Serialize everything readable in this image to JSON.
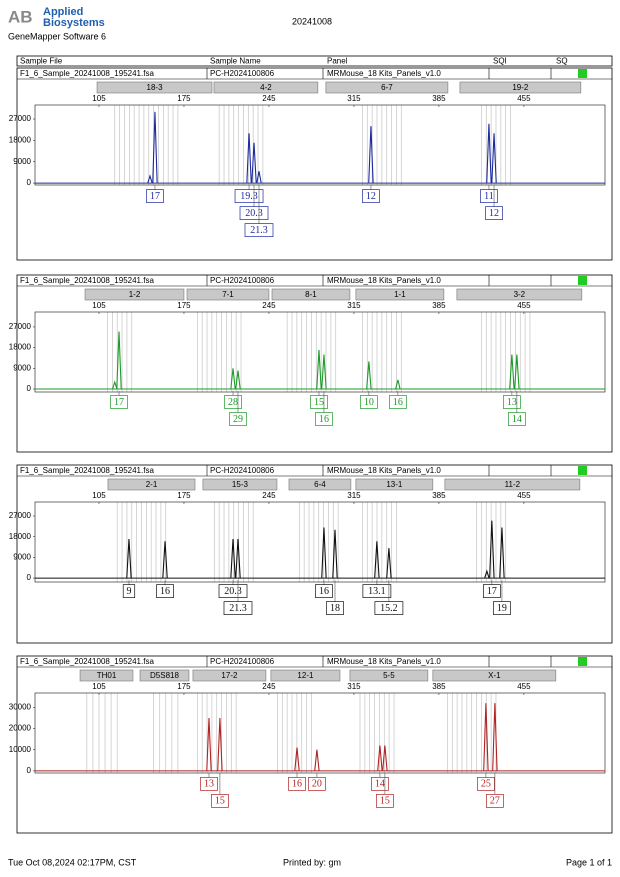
{
  "header": {
    "logo": "AB",
    "brand_line1": "Applied",
    "brand_line2": "Biosystems",
    "software": "GeneMapper Software 6",
    "run": "20241008"
  },
  "columns": [
    "Sample File",
    "Sample Name",
    "Panel",
    "SQI",
    "SQ"
  ],
  "panels": [
    {
      "sample_file": "F1_6_Sample_20241008_195241.fsa",
      "sample_name": "PC-H2024100806",
      "panel": "MRMouse_18 Kits_Panels_v1.0",
      "color": "#1c2a9c",
      "xlim": [
        52.3,
        521.8
      ],
      "xticks": [
        105,
        175,
        245,
        315,
        385,
        455
      ],
      "ylim": [
        -800,
        32900
      ],
      "yticks": [
        0,
        9000,
        18000,
        27000
      ],
      "markers": [
        {
          "label": "18-3",
          "start": 103.4,
          "end": 198.1
        },
        {
          "label": "4-2",
          "start": 199.7,
          "end": 285.3
        },
        {
          "label": "6-7",
          "start": 291.9,
          "end": 392.4
        },
        {
          "label": "19-2",
          "start": 402.3,
          "end": 501.9
        }
      ],
      "bins": [
        118,
        122,
        126,
        130,
        134,
        138,
        142,
        146,
        150,
        154,
        158,
        162,
        166,
        170,
        204,
        208,
        212,
        216,
        220,
        224,
        228,
        232,
        236,
        240,
        322,
        326,
        330,
        334,
        338,
        342,
        346,
        350,
        354,
        420,
        424,
        428,
        432,
        436,
        440,
        444
      ],
      "peaks": [
        {
          "x": 147,
          "height": 3000,
          "allele": null
        },
        {
          "x": 151.1,
          "height": 30000,
          "allele": "17"
        },
        {
          "x": 228.6,
          "height": 21000,
          "allele": "19.3"
        },
        {
          "x": 232.7,
          "height": 17000,
          "allele": "20.3"
        },
        {
          "x": 236.8,
          "height": 5000,
          "allele": "21.3"
        },
        {
          "x": 329,
          "height": 24000,
          "allele": "12"
        },
        {
          "x": 426.2,
          "height": 25000,
          "allele": "11"
        },
        {
          "x": 430.4,
          "height": 21000,
          "allele": "12"
        }
      ]
    },
    {
      "sample_file": "F1_6_Sample_20241008_195241.fsa",
      "sample_name": "PC-H2024100806",
      "panel": "MRMouse_18 Kits_Panels_v1.0",
      "color": "#1e9a2a",
      "xlim": [
        52.3,
        521.8
      ],
      "xticks": [
        105,
        175,
        245,
        315,
        385,
        455
      ],
      "ylim": [
        -1300,
        33500
      ],
      "yticks": [
        0,
        9000,
        18000,
        27000
      ],
      "markers": [
        {
          "label": "1-2",
          "start": 93.5,
          "end": 175
        },
        {
          "label": "7-1",
          "start": 177.5,
          "end": 245
        },
        {
          "label": "8-1",
          "start": 247.5,
          "end": 311.7
        },
        {
          "label": "1-1",
          "start": 316.6,
          "end": 389.1
        },
        {
          "label": "3-2",
          "start": 399.8,
          "end": 502.7
        }
      ],
      "bins": [
        112,
        116,
        120,
        124,
        128,
        132,
        186,
        190,
        194,
        198,
        202,
        206,
        210,
        214,
        218,
        222,
        260,
        264,
        268,
        272,
        276,
        280,
        284,
        288,
        292,
        296,
        300,
        322,
        326,
        330,
        334,
        338,
        342,
        346,
        350,
        354,
        420,
        424,
        428,
        432,
        436,
        440,
        444,
        448,
        452,
        456,
        460
      ],
      "peaks": [
        {
          "x": 118,
          "height": 3000,
          "allele": null
        },
        {
          "x": 121.5,
          "height": 25000,
          "allele": "17"
        },
        {
          "x": 215.4,
          "height": 9000,
          "allele": "28"
        },
        {
          "x": 219.5,
          "height": 8000,
          "allele": "29"
        },
        {
          "x": 286.2,
          "height": 17000,
          "allele": "15"
        },
        {
          "x": 290.3,
          "height": 15000,
          "allele": "16"
        },
        {
          "x": 327.3,
          "height": 12000,
          "allele": "10"
        },
        {
          "x": 351.2,
          "height": 4000,
          "allele": "16"
        },
        {
          "x": 445.1,
          "height": 15000,
          "allele": "13"
        },
        {
          "x": 449.2,
          "height": 15000,
          "allele": "14"
        }
      ]
    },
    {
      "sample_file": "F1_6_Sample_20241008_195241.fsa",
      "sample_name": "PC-H2024100806",
      "panel": "MRMouse_18 Kits_Panels_v1.0",
      "color": "#111111",
      "xlim": [
        52.3,
        521.8
      ],
      "xticks": [
        105,
        175,
        245,
        315,
        385,
        455
      ],
      "ylim": [
        -1700,
        33100
      ],
      "yticks": [
        0,
        9000,
        18000,
        27000
      ],
      "markers": [
        {
          "label": "2-1",
          "start": 112.4,
          "end": 184.1
        },
        {
          "label": "15-3",
          "start": 190.6,
          "end": 251.6
        },
        {
          "label": "6-4",
          "start": 261.5,
          "end": 312.5
        },
        {
          "label": "13-1",
          "start": 316.6,
          "end": 380
        },
        {
          "label": "11-2",
          "start": 389.9,
          "end": 501.1
        }
      ],
      "bins": [
        120,
        124,
        128,
        132,
        136,
        140,
        144,
        148,
        152,
        156,
        160,
        200,
        204,
        208,
        212,
        216,
        220,
        224,
        228,
        232,
        270,
        274,
        278,
        282,
        286,
        290,
        294,
        298,
        302,
        322,
        326,
        330,
        334,
        338,
        342,
        346,
        350,
        416,
        420,
        424,
        428,
        432,
        436,
        440
      ],
      "peaks": [
        {
          "x": 129.7,
          "height": 17000,
          "allele": "9"
        },
        {
          "x": 159.4,
          "height": 16000,
          "allele": "16"
        },
        {
          "x": 215.4,
          "height": 17000,
          "allele": "20.3"
        },
        {
          "x": 219.5,
          "height": 17000,
          "allele": "21.3"
        },
        {
          "x": 290.3,
          "height": 22000,
          "allele": "16"
        },
        {
          "x": 299.4,
          "height": 21000,
          "allele": "18"
        },
        {
          "x": 333.9,
          "height": 16000,
          "allele": "13.1"
        },
        {
          "x": 343.8,
          "height": 13000,
          "allele": "15.2"
        },
        {
          "x": 424.5,
          "height": 3000,
          "allele": null
        },
        {
          "x": 428.6,
          "height": 25000,
          "allele": "17"
        },
        {
          "x": 436.9,
          "height": 22000,
          "allele": "19"
        }
      ]
    },
    {
      "sample_file": "F1_6_Sample_20241008_195241.fsa",
      "sample_name": "PC-H2024100806",
      "panel": "MRMouse_18 Kits_Panels_v1.0",
      "color": "#b22222",
      "xlim": [
        52.3,
        521.8
      ],
      "xticks": [
        105,
        175,
        245,
        315,
        385,
        455
      ],
      "ylim": [
        -1000,
        36800
      ],
      "yticks": [
        0,
        10000,
        20000,
        30000
      ],
      "markers": [
        {
          "label": "TH01",
          "start": 89.4,
          "end": 133
        },
        {
          "label": "D5S818",
          "start": 138.8,
          "end": 179.1
        },
        {
          "label": "17-2",
          "start": 182.4,
          "end": 242.5
        },
        {
          "label": "12-1",
          "start": 246.6,
          "end": 303.5
        },
        {
          "label": "5-5",
          "start": 311.7,
          "end": 375.9
        },
        {
          "label": "X-1",
          "start": 380,
          "end": 481.3
        }
      ],
      "bins": [
        95,
        100,
        105,
        110,
        115,
        120,
        150,
        155,
        160,
        165,
        170,
        186,
        190,
        194,
        198,
        202,
        206,
        210,
        214,
        218,
        252,
        256,
        260,
        264,
        268,
        272,
        276,
        280,
        320,
        324,
        328,
        332,
        336,
        340,
        344,
        348,
        392,
        396,
        400,
        404,
        408,
        412,
        416,
        420,
        424,
        428,
        432
      ],
      "peaks": [
        {
          "x": 195.6,
          "height": 25000,
          "allele": "13"
        },
        {
          "x": 204.6,
          "height": 25000,
          "allele": "15"
        },
        {
          "x": 268.1,
          "height": 11000,
          "allele": "16"
        },
        {
          "x": 284.5,
          "height": 10000,
          "allele": "20"
        },
        {
          "x": 336.4,
          "height": 12000,
          "allele": "14"
        },
        {
          "x": 340.5,
          "height": 12000,
          "allele": "15"
        },
        {
          "x": 423.7,
          "height": 32000,
          "allele": "25"
        },
        {
          "x": 431.1,
          "height": 32000,
          "allele": "27"
        }
      ]
    }
  ],
  "footer": {
    "date": "Tue Oct 08,2024 02:17PM, CST",
    "printed": "Printed by: gm",
    "page": "Page 1 of 1"
  }
}
